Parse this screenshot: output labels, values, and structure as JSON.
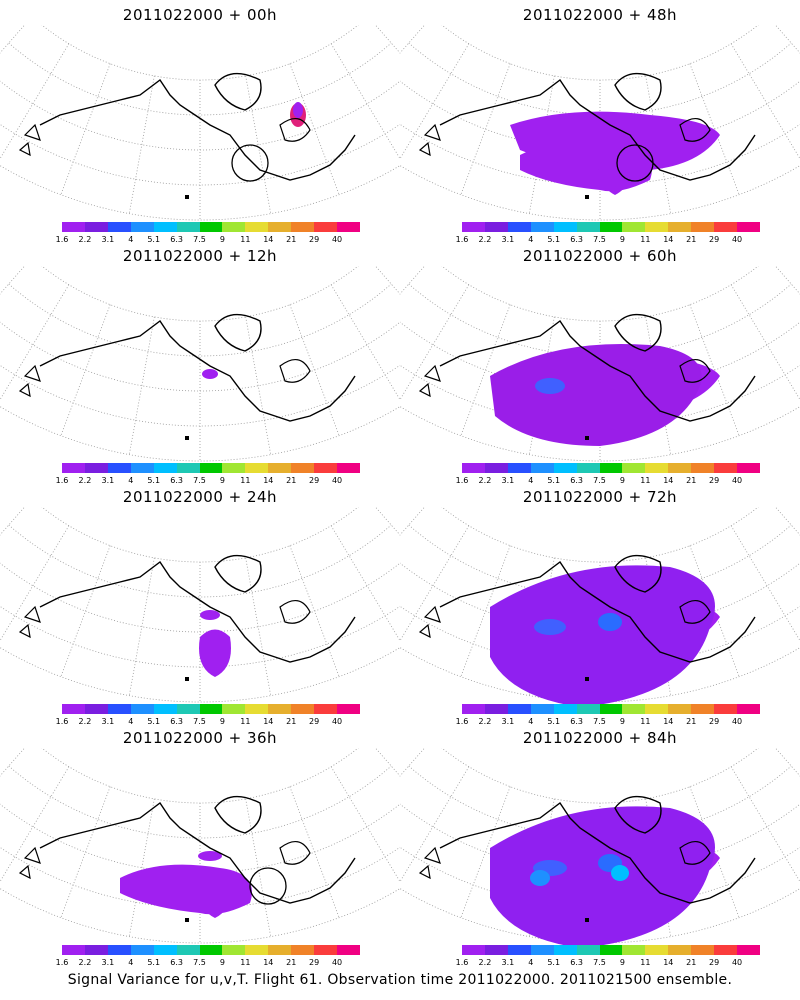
{
  "panels": [
    {
      "title": "2011022000 + 00h",
      "level": 0
    },
    {
      "title": "2011022000 + 48h",
      "level": 4
    },
    {
      "title": "2011022000 + 12h",
      "level": 1
    },
    {
      "title": "2011022000 + 60h",
      "level": 5
    },
    {
      "title": "2011022000 + 24h",
      "level": 2
    },
    {
      "title": "2011022000 + 72h",
      "level": 6
    },
    {
      "title": "2011022000 + 36h",
      "level": 3
    },
    {
      "title": "2011022000 + 84h",
      "level": 7
    }
  ],
  "colorbar": {
    "labels": [
      "1.6",
      "2.2",
      "3.1",
      "4",
      "5.1",
      "6.3",
      "7.5",
      "9",
      "11",
      "14",
      "21",
      "29",
      "40"
    ],
    "colors": [
      "#a020f0",
      "#7a1ee0",
      "#2850ff",
      "#1e90ff",
      "#00bfff",
      "#1ec8b4",
      "#00c800",
      "#a0e632",
      "#e6dc32",
      "#e6af2d",
      "#f08228",
      "#fa3c3c",
      "#f00082"
    ]
  },
  "caption": "Signal Variance for u,v,T. Flight 61. Observation time 2011022000. 2011021500 ensemble."
}
